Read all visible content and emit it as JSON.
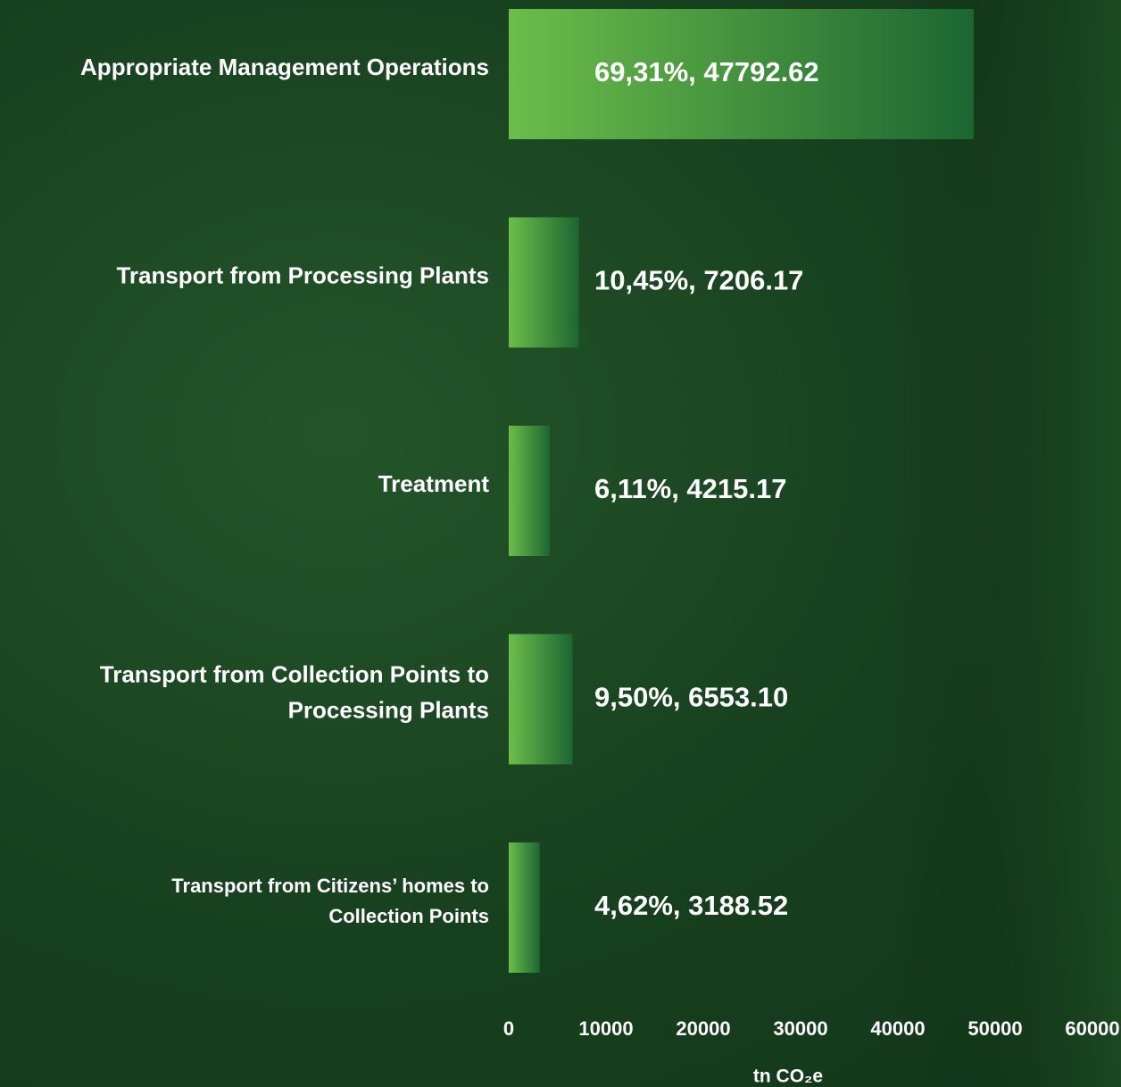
{
  "chart_data": {
    "type": "hbar",
    "categories": [
      "Appropriate Management Operations",
      "Transport from Processing Plants",
      "Treatment",
      "Transport from Collection Points to\nProcessing Plants",
      "Transport from Citizens’ homes to\nCollection Points"
    ],
    "values": [
      47792.62,
      7206.17,
      4215.17,
      6553.1,
      3188.52
    ],
    "value_labels": [
      "69,31%, 47792.62",
      "10,45%, 7206.17",
      "6,11%, 4215.17",
      "9,50%, 6553.10",
      "4,62%, 3188.52"
    ],
    "colors": [
      "#6cbd4a",
      "#1c6632"
    ],
    "xlim": [
      0,
      60000
    ],
    "xticks": [
      0,
      10000,
      20000,
      30000,
      40000,
      50000,
      60000
    ],
    "xlabel": "tn CO₂e"
  }
}
